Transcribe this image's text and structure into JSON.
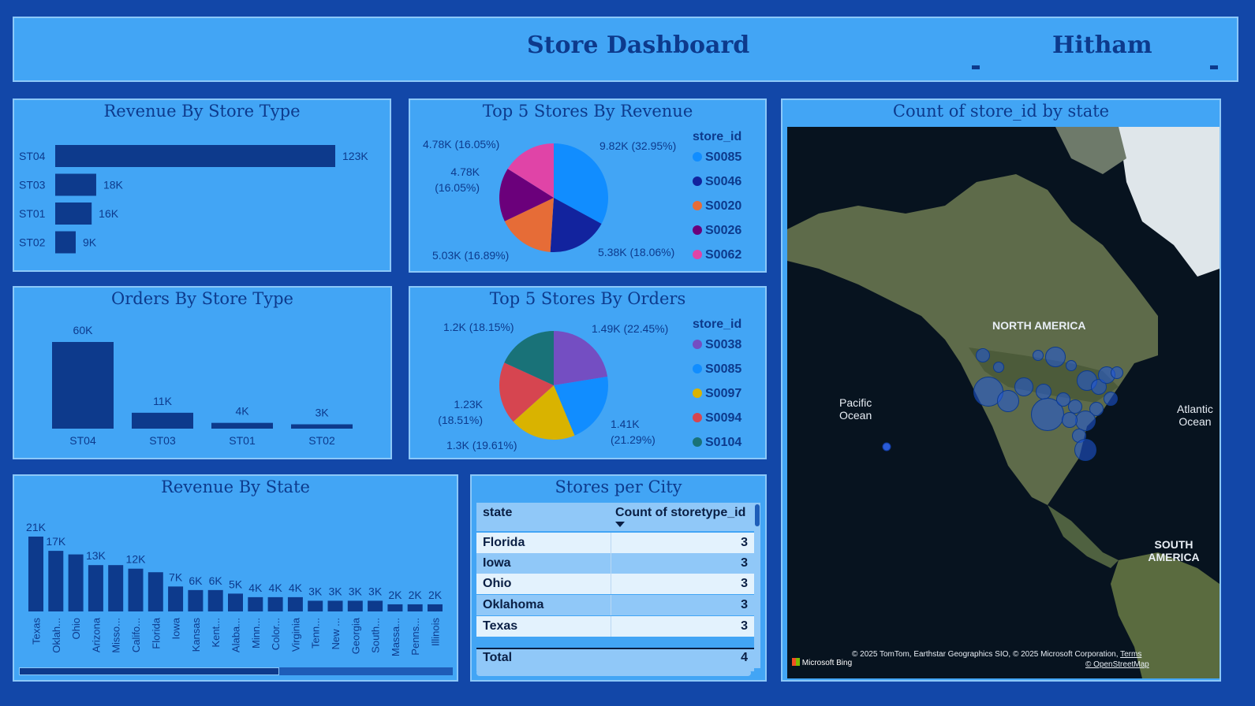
{
  "header": {
    "title": "Store Dashboard",
    "user": "Hitham"
  },
  "revenue_by_store_type": {
    "title": "Revenue By Store Type",
    "chart_data": {
      "type": "bar",
      "orientation": "horizontal",
      "categories": [
        "ST04",
        "ST03",
        "ST01",
        "ST02"
      ],
      "values": [
        123,
        18,
        16,
        9
      ],
      "data_labels": [
        "123K",
        "18K",
        "16K",
        "9K"
      ],
      "unit": "K"
    }
  },
  "top5_revenue": {
    "title": "Top 5 Stores By Revenue",
    "legend_title": "store_id",
    "chart_data": {
      "type": "pie",
      "labels": [
        "S0085",
        "S0046",
        "S0020",
        "S0026",
        "S0062"
      ],
      "values": [
        32.95,
        18.06,
        16.89,
        16.05,
        16.05
      ],
      "data_labels": [
        "9.82K (32.95%)",
        "5.38K (18.06%)",
        "5.03K (16.89%)",
        "4.78K (16.05%)",
        "4.78K (16.05%)"
      ],
      "colors": [
        "#118dff",
        "#12239e",
        "#e66c37",
        "#6b007b",
        "#e044a7"
      ]
    }
  },
  "orders_by_store_type": {
    "title": "Orders By Store Type",
    "chart_data": {
      "type": "bar",
      "categories": [
        "ST04",
        "ST03",
        "ST01",
        "ST02"
      ],
      "values": [
        60,
        11,
        4,
        3
      ],
      "data_labels": [
        "60K",
        "11K",
        "4K",
        "3K"
      ],
      "unit": "K"
    }
  },
  "top5_orders": {
    "title": "Top 5 Stores By Orders",
    "legend_title": "store_id",
    "chart_data": {
      "type": "pie",
      "labels": [
        "S0038",
        "S0085",
        "S0097",
        "S0094",
        "S0104"
      ],
      "values": [
        22.45,
        21.29,
        19.61,
        18.51,
        18.15
      ],
      "data_labels": [
        "1.49K (22.45%)",
        "1.41K (21.29%)",
        "1.3K (19.61%)",
        "1.23K (18.51%)",
        "1.2K (18.15%)"
      ],
      "colors": [
        "#744ec2",
        "#118dff",
        "#d9b300",
        "#d64550",
        "#197278"
      ]
    }
  },
  "revenue_by_state": {
    "title": "Revenue By State",
    "chart_data": {
      "type": "bar",
      "categories": [
        "Texas",
        "Oklah...",
        "Ohio",
        "Arizona",
        "Misso...",
        "Califo...",
        "Florida",
        "Iowa",
        "Kansas",
        "Kent...",
        "Alaba...",
        "Minn...",
        "Color...",
        "Virginia",
        "Tenn...",
        "New ...",
        "Georgia",
        "South...",
        "Massa...",
        "Penns...",
        "Illinois"
      ],
      "values": [
        21,
        17,
        16,
        13,
        13,
        12,
        11,
        7,
        6,
        6,
        5,
        4,
        4,
        4,
        3,
        3,
        3,
        3,
        2,
        2,
        2
      ],
      "data_labels": [
        "21K",
        "17K",
        "",
        "13K",
        "",
        "12K",
        "",
        "7K",
        "6K",
        "6K",
        "5K",
        "4K",
        "4K",
        "4K",
        "3K",
        "3K",
        "3K",
        "3K",
        "2K",
        "2K",
        "2K"
      ],
      "unit": "K"
    }
  },
  "stores_per_city": {
    "title": "Stores per City",
    "columns": [
      "state",
      "Count of storetype_id"
    ],
    "rows": [
      {
        "state": "Florida",
        "count": "3"
      },
      {
        "state": "Iowa",
        "count": "3"
      },
      {
        "state": "Ohio",
        "count": "3"
      },
      {
        "state": "Oklahoma",
        "count": "3"
      },
      {
        "state": "Texas",
        "count": "3"
      }
    ],
    "total_label": "Total",
    "total_value": "4"
  },
  "map": {
    "title": "Count of store_id by state",
    "labels": {
      "north_america": "NORTH AMERICA",
      "south_america": "SOUTH AMERICA",
      "pacific": "Pacific\nOcean",
      "atlantic": "Atlantic\nOcean"
    },
    "attribution": "© 2025 TomTom, Earthstar Geographics SIO, © 2025 Microsoft Corporation,",
    "terms": "Terms",
    "osm": "© OpenStreetMap",
    "brand": "Microsoft Bing"
  }
}
